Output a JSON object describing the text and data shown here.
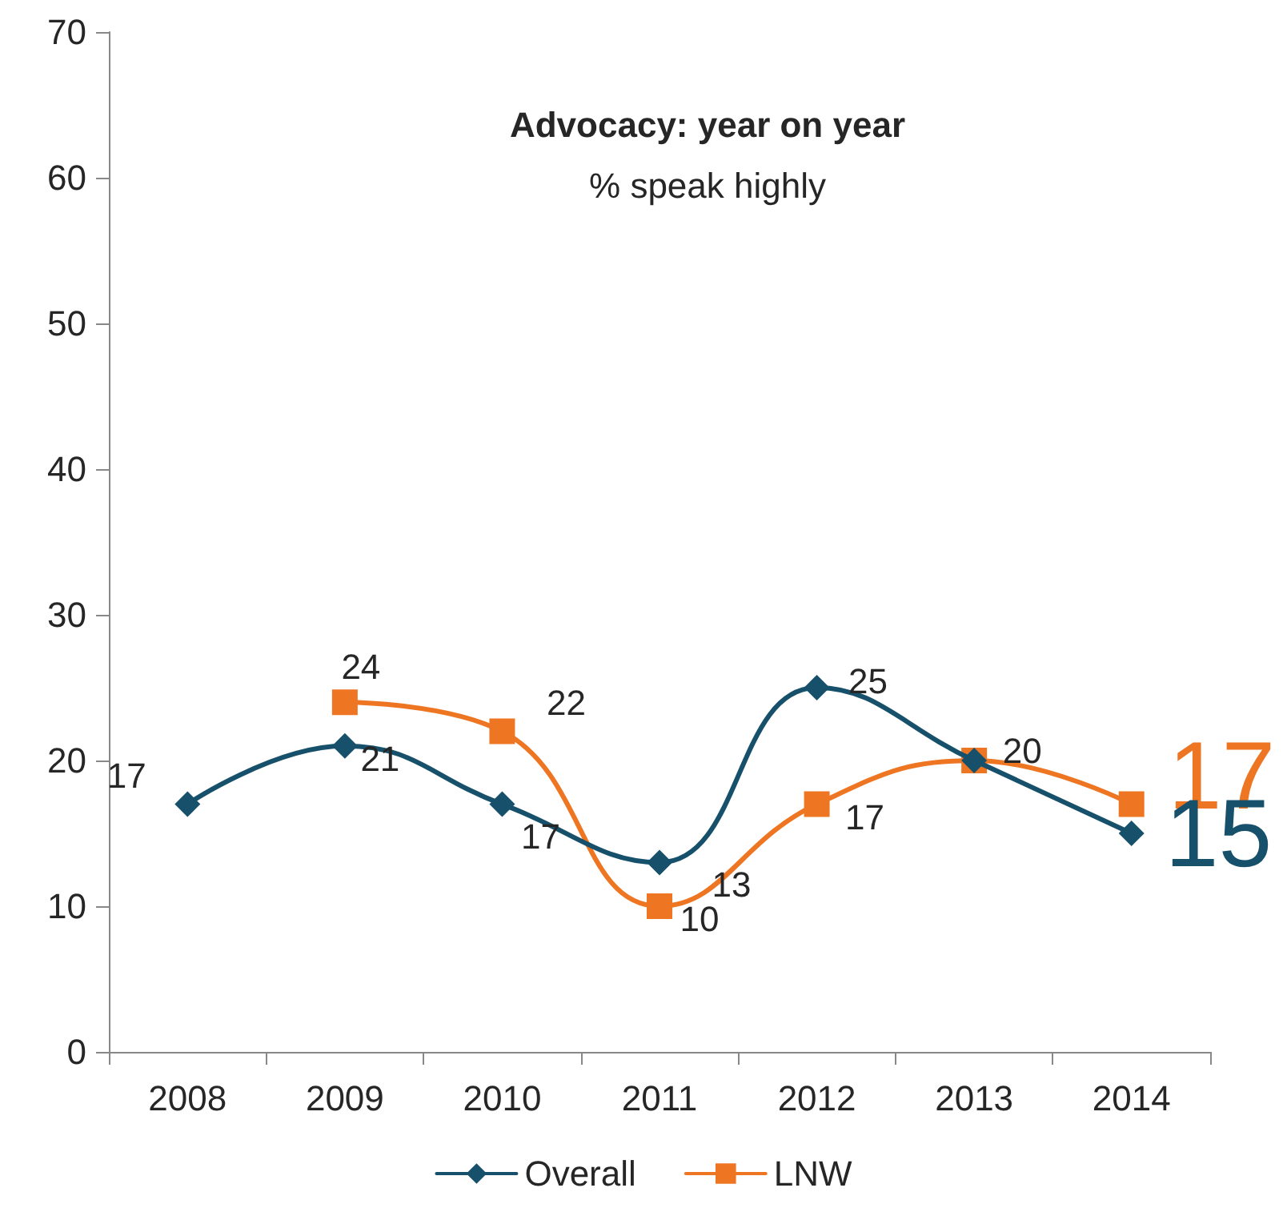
{
  "chart_data": {
    "type": "line",
    "title": "Advocacy: year on year",
    "subtitle": "% speak highly",
    "categories": [
      "2008",
      "2009",
      "2010",
      "2011",
      "2012",
      "2013",
      "2014"
    ],
    "series": [
      {
        "name": "Overall",
        "color": "#17506b",
        "marker": "diamond",
        "values": [
          17,
          21,
          17,
          13,
          25,
          20,
          15
        ],
        "value_labels": [
          "17",
          "21",
          "17",
          "13",
          "25",
          null,
          "15"
        ]
      },
      {
        "name": "LNW",
        "color": "#ee7623",
        "marker": "square",
        "values": [
          null,
          24,
          22,
          10,
          17,
          20,
          17
        ],
        "value_labels": [
          null,
          "24",
          "22",
          "10",
          "17",
          "20",
          "17"
        ]
      }
    ],
    "ylim": [
      0,
      70
    ],
    "yticks": [
      0,
      10,
      20,
      30,
      40,
      50,
      60,
      70
    ],
    "grid": false,
    "legend": "bottom",
    "line_style": "solid"
  }
}
